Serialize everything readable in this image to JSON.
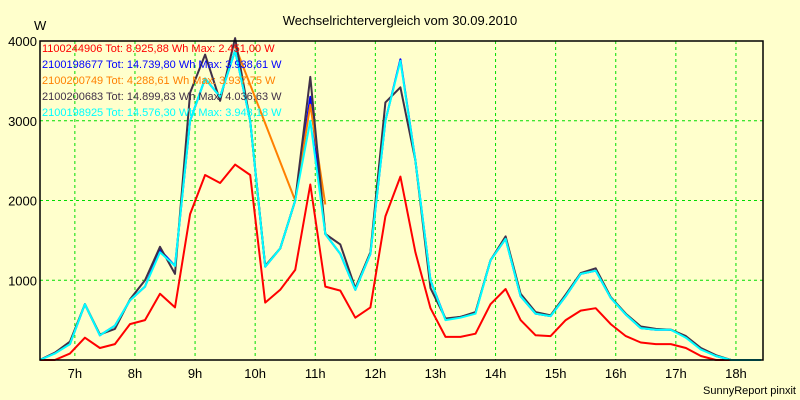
{
  "chart_data": {
    "type": "line",
    "title": "Wechselrichtervergleich vom 30.09.2010",
    "ylabel": "W",
    "xlabel": "",
    "ylim": [
      0,
      4000
    ],
    "yticks": [
      1000,
      2000,
      3000,
      4000
    ],
    "xlim_hours": [
      6.42,
      18.45
    ],
    "xticks": [
      {
        "h": 7,
        "label": "7h"
      },
      {
        "h": 8,
        "label": "8h"
      },
      {
        "h": 9,
        "label": "9h"
      },
      {
        "h": 10,
        "label": "10h"
      },
      {
        "h": 11,
        "label": "11h"
      },
      {
        "h": 12,
        "label": "12h"
      },
      {
        "h": 13,
        "label": "13h"
      },
      {
        "h": 14,
        "label": "14h"
      },
      {
        "h": 15,
        "label": "15h"
      },
      {
        "h": 16,
        "label": "16h"
      },
      {
        "h": 17,
        "label": "17h"
      },
      {
        "h": 18,
        "label": "18h"
      }
    ],
    "grid": true,
    "legend_position": "top-left",
    "x_start_hour": 6.4167,
    "x_step_minutes": 15,
    "series": [
      {
        "name": "1100244906",
        "legend": "1100244906 Tot: 8.925,88 Wh Max: 2.451,00 W",
        "color": "#ff0000",
        "values": [
          0,
          0,
          80,
          280,
          150,
          200,
          450,
          500,
          830,
          660,
          1830,
          2320,
          2220,
          2450,
          2320,
          720,
          880,
          1130,
          2200,
          920,
          870,
          530,
          660,
          1800,
          2300,
          1350,
          650,
          290,
          290,
          330,
          700,
          890,
          500,
          310,
          300,
          500,
          620,
          650,
          450,
          300,
          220,
          200,
          200,
          150,
          50,
          0,
          0,
          0,
          0
        ]
      },
      {
        "name": "2100198677",
        "legend": "2100198677 Tot: 14.739,80 Wh Max: 3.938,61 W",
        "color": "#0000ff",
        "values": [
          0,
          90,
          200,
          700,
          310,
          430,
          750,
          920,
          1380,
          1180,
          3000,
          3530,
          3300,
          3880,
          3000,
          1170,
          1400,
          2000,
          3300,
          1580,
          1330,
          880,
          1330,
          3000,
          3770,
          2500,
          1000,
          510,
          540,
          590,
          1250,
          1520,
          800,
          580,
          550,
          800,
          1080,
          1120,
          780,
          570,
          400,
          380,
          380,
          290,
          140,
          50,
          0,
          0,
          0
        ]
      },
      {
        "name": "2100200749",
        "legend": "2100200749 Tot: 4.288,61 Wh Max: 3.937,75 W",
        "color": "#ff8000",
        "values": [
          null,
          null,
          null,
          null,
          null,
          null,
          null,
          null,
          null,
          null,
          null,
          null,
          null,
          3937,
          null,
          null,
          null,
          2000,
          3200,
          1950,
          null,
          null,
          null,
          null,
          null,
          null,
          null,
          null,
          null,
          null,
          null,
          null,
          null,
          null,
          null,
          null,
          null,
          null,
          null,
          null,
          null,
          null,
          null,
          null,
          null,
          null,
          null,
          null,
          null
        ]
      },
      {
        "name": "2100200683",
        "legend": "2100200683 Tot: 14.899,83 Wh Max: 4.036,63 W",
        "color": "#403048",
        "values": [
          0,
          90,
          230,
          700,
          320,
          390,
          760,
          1000,
          1420,
          1080,
          3350,
          3830,
          3250,
          4036,
          3000,
          1180,
          1400,
          2000,
          3550,
          1580,
          1450,
          900,
          1350,
          3230,
          3420,
          2500,
          900,
          520,
          540,
          600,
          1250,
          1550,
          830,
          600,
          560,
          820,
          1090,
          1150,
          790,
          580,
          420,
          390,
          380,
          300,
          150,
          60,
          0,
          0,
          0
        ]
      },
      {
        "name": "2100198925",
        "legend": "2100198925 Tot: 14.576,30 Wh Max: 3.943,18 W",
        "color": "#00ffff",
        "values": [
          0,
          80,
          200,
          700,
          310,
          430,
          750,
          920,
          1350,
          1180,
          3000,
          3530,
          3300,
          3880,
          3000,
          1170,
          1400,
          2000,
          3000,
          1580,
          1330,
          880,
          1330,
          3000,
          3750,
          2500,
          1000,
          500,
          530,
          580,
          1250,
          1520,
          800,
          580,
          550,
          800,
          1080,
          1120,
          780,
          570,
          400,
          380,
          380,
          280,
          130,
          50,
          0,
          0,
          0
        ]
      }
    ],
    "footer": "SunnyReport pinxit"
  }
}
